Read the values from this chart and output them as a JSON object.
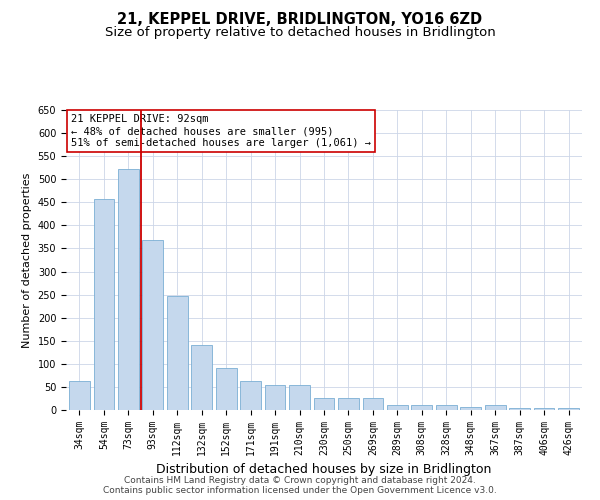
{
  "title": "21, KEPPEL DRIVE, BRIDLINGTON, YO16 6ZD",
  "subtitle": "Size of property relative to detached houses in Bridlington",
  "xlabel": "Distribution of detached houses by size in Bridlington",
  "ylabel": "Number of detached properties",
  "categories": [
    "34sqm",
    "54sqm",
    "73sqm",
    "93sqm",
    "112sqm",
    "132sqm",
    "152sqm",
    "171sqm",
    "191sqm",
    "210sqm",
    "230sqm",
    "250sqm",
    "269sqm",
    "289sqm",
    "308sqm",
    "328sqm",
    "348sqm",
    "367sqm",
    "387sqm",
    "406sqm",
    "426sqm"
  ],
  "values": [
    62,
    457,
    522,
    368,
    248,
    140,
    92,
    62,
    55,
    55,
    27,
    27,
    27,
    11,
    11,
    11,
    6,
    11,
    4,
    4,
    4
  ],
  "bar_color": "#c5d8ed",
  "bar_edge_color": "#7bafd4",
  "vline_x": 2.5,
  "vline_color": "#cc0000",
  "annotation_text": "21 KEPPEL DRIVE: 92sqm\n← 48% of detached houses are smaller (995)\n51% of semi-detached houses are larger (1,061) →",
  "annotation_box_color": "#ffffff",
  "annotation_box_edge": "#cc0000",
  "ylim": [
    0,
    650
  ],
  "yticks": [
    0,
    50,
    100,
    150,
    200,
    250,
    300,
    350,
    400,
    450,
    500,
    550,
    600,
    650
  ],
  "footer_line1": "Contains HM Land Registry data © Crown copyright and database right 2024.",
  "footer_line2": "Contains public sector information licensed under the Open Government Licence v3.0.",
  "background_color": "#ffffff",
  "grid_color": "#ccd6e8",
  "title_fontsize": 10.5,
  "subtitle_fontsize": 9.5,
  "ylabel_fontsize": 8,
  "xlabel_fontsize": 9,
  "tick_fontsize": 7,
  "annot_fontsize": 7.5,
  "footer_fontsize": 6.5
}
